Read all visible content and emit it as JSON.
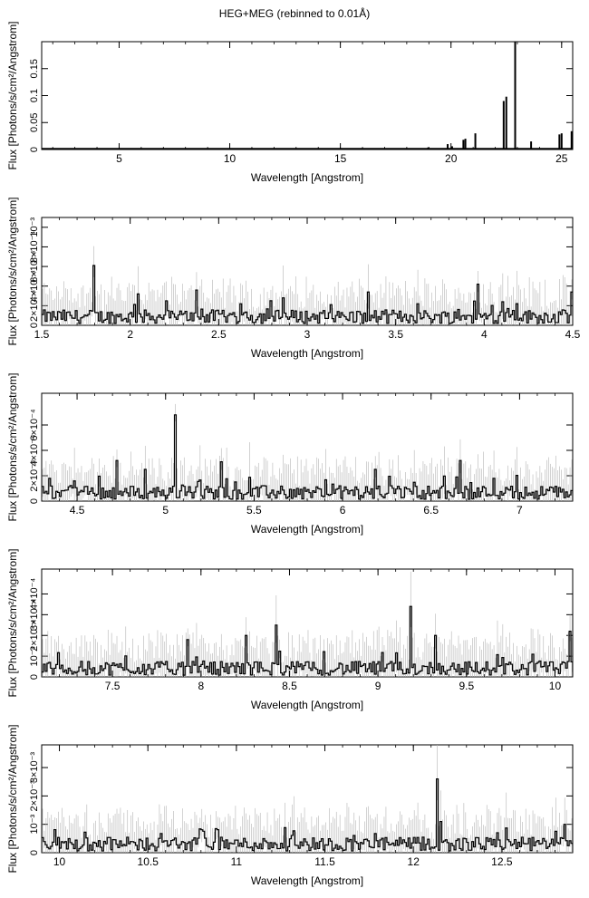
{
  "title": "HEG+MEG (rebinned to 0.01Å)",
  "chart_data": [
    {
      "type": "line",
      "title": "",
      "xlabel": "Wavelength [Angstrom]",
      "ylabel": "Flux [Photons/s/cm²/Angstrom]",
      "xlim": [
        1.5,
        25.5
      ],
      "ylim": [
        0,
        0.2
      ],
      "xticks": [
        5,
        10,
        15,
        20,
        25
      ],
      "xtick_labels": [
        "5",
        "10",
        "15",
        "20",
        "25"
      ],
      "yticks": [
        0,
        0.05,
        0.1,
        0.15
      ],
      "ytick_labels": [
        "0",
        "0.05",
        "0.1",
        "0.15"
      ],
      "lines": [
        {
          "x": 16.78,
          "y": 0.0015
        },
        {
          "x": 17.05,
          "y": 0.002
        },
        {
          "x": 17.1,
          "y": 0.002
        },
        {
          "x": 18.62,
          "y": 0.001
        },
        {
          "x": 18.97,
          "y": 0.004
        },
        {
          "x": 19.1,
          "y": 0.001
        },
        {
          "x": 19.85,
          "y": 0.01
        },
        {
          "x": 20.05,
          "y": 0.006
        },
        {
          "x": 20.56,
          "y": 0.018
        },
        {
          "x": 20.65,
          "y": 0.02
        },
        {
          "x": 21.1,
          "y": 0.03
        },
        {
          "x": 22.38,
          "y": 0.09
        },
        {
          "x": 22.5,
          "y": 0.098
        },
        {
          "x": 22.9,
          "y": 0.2
        },
        {
          "x": 23.62,
          "y": 0.015
        },
        {
          "x": 24.9,
          "y": 0.028
        },
        {
          "x": 25.0,
          "y": 0.03
        },
        {
          "x": 25.45,
          "y": 0.034
        }
      ]
    },
    {
      "type": "line",
      "title": "",
      "xlabel": "Wavelength [Angstrom]",
      "ylabel": "Flux [Photons/s/cm²/Angstrom]",
      "xlim": [
        1.5,
        4.5
      ],
      "ylim": [
        0,
        0.0011
      ],
      "xticks": [
        1.5,
        2,
        2.5,
        3,
        3.5,
        4,
        4.5
      ],
      "xtick_labels": [
        "1.5",
        "2",
        "2.5",
        "3",
        "3.5",
        "4",
        "4.5"
      ],
      "yticks": [
        0,
        0.0002,
        0.0004,
        0.0006,
        0.0008,
        0.001
      ],
      "ytick_labels": [
        "0",
        "2×10⁻⁴",
        "4×10⁻⁴",
        "6×10⁻⁴",
        "8×10⁻⁴",
        "10⁻³"
      ],
      "peaks": [
        {
          "x": 1.79,
          "y": 0.00061
        },
        {
          "x": 2.04,
          "y": 0.00032
        },
        {
          "x": 2.2,
          "y": 0.00025
        },
        {
          "x": 2.37,
          "y": 0.00036
        },
        {
          "x": 2.62,
          "y": 0.00022
        },
        {
          "x": 2.86,
          "y": 0.00028
        },
        {
          "x": 3.34,
          "y": 0.00034
        },
        {
          "x": 3.62,
          "y": 0.00022
        },
        {
          "x": 3.96,
          "y": 0.00042
        },
        {
          "x": 4.1,
          "y": 0.00024
        },
        {
          "x": 4.49,
          "y": 0.00034
        }
      ]
    },
    {
      "type": "line",
      "title": "",
      "xlabel": "Wavelength [Angstrom]",
      "ylabel": "Flux [Photons/s/cm²/Angstrom]",
      "xlim": [
        4.3,
        7.3
      ],
      "ylim": [
        0,
        0.00085
      ],
      "xticks": [
        4.5,
        5,
        5.5,
        6,
        6.5,
        7
      ],
      "xtick_labels": [
        "4.5",
        "5",
        "5.5",
        "6",
        "6.5",
        "7"
      ],
      "yticks": [
        0,
        0.0002,
        0.0004,
        0.0006
      ],
      "ytick_labels": [
        "0",
        "2×10⁻⁴",
        "4×10⁻⁴",
        "6×10⁻⁴"
      ],
      "peaks": [
        {
          "x": 4.72,
          "y": 0.00032
        },
        {
          "x": 4.88,
          "y": 0.00025
        },
        {
          "x": 5.05,
          "y": 0.00068
        },
        {
          "x": 5.31,
          "y": 0.00031
        },
        {
          "x": 6.18,
          "y": 0.00025
        },
        {
          "x": 6.66,
          "y": 0.00032
        },
        {
          "x": 6.85,
          "y": 0.00018
        }
      ]
    },
    {
      "type": "line",
      "title": "",
      "xlabel": "Wavelength [Angstrom]",
      "ylabel": "Flux [Photons/s/cm²/Angstrom]",
      "xlim": [
        7.1,
        10.1
      ],
      "ylim": [
        0,
        0.00052
      ],
      "xticks": [
        7.5,
        8,
        8.5,
        9,
        9.5,
        10
      ],
      "xtick_labels": [
        "7.5",
        "8",
        "8.5",
        "9",
        "9.5",
        "10"
      ],
      "yticks": [
        0,
        0.0001,
        0.0002,
        0.0003,
        0.0004
      ],
      "ytick_labels": [
        "0",
        "10⁻⁴",
        "2×10⁻⁴",
        "3×10⁻⁴",
        "4×10⁻⁴"
      ],
      "peaks": [
        {
          "x": 7.92,
          "y": 0.00018
        },
        {
          "x": 8.25,
          "y": 0.0002
        },
        {
          "x": 8.42,
          "y": 0.00025
        },
        {
          "x": 9.18,
          "y": 0.00034
        },
        {
          "x": 9.32,
          "y": 0.0002
        },
        {
          "x": 10.08,
          "y": 0.00022
        }
      ]
    },
    {
      "type": "line",
      "title": "",
      "xlabel": "Wavelength [Angstrom]",
      "ylabel": "Flux [Photons/s/cm²/Angstrom]",
      "xlim": [
        9.9,
        12.9
      ],
      "ylim": [
        0,
        0.0038
      ],
      "xticks": [
        10,
        10.5,
        11,
        11.5,
        12,
        12.5
      ],
      "xtick_labels": [
        "10",
        "10.5",
        "11",
        "11.5",
        "12",
        "12.5"
      ],
      "yticks": [
        0,
        0.001,
        0.002,
        0.003
      ],
      "ytick_labels": [
        "0",
        "10⁻³",
        "2×10⁻³",
        "3×10⁻³"
      ],
      "peaks": [
        {
          "x": 12.13,
          "y": 0.0026
        },
        {
          "x": 12.15,
          "y": 0.0011
        },
        {
          "x": 12.85,
          "y": 0.001
        },
        {
          "x": 12.42,
          "y": 0.0004
        },
        {
          "x": 10.25,
          "y": 0.0004
        }
      ]
    }
  ]
}
